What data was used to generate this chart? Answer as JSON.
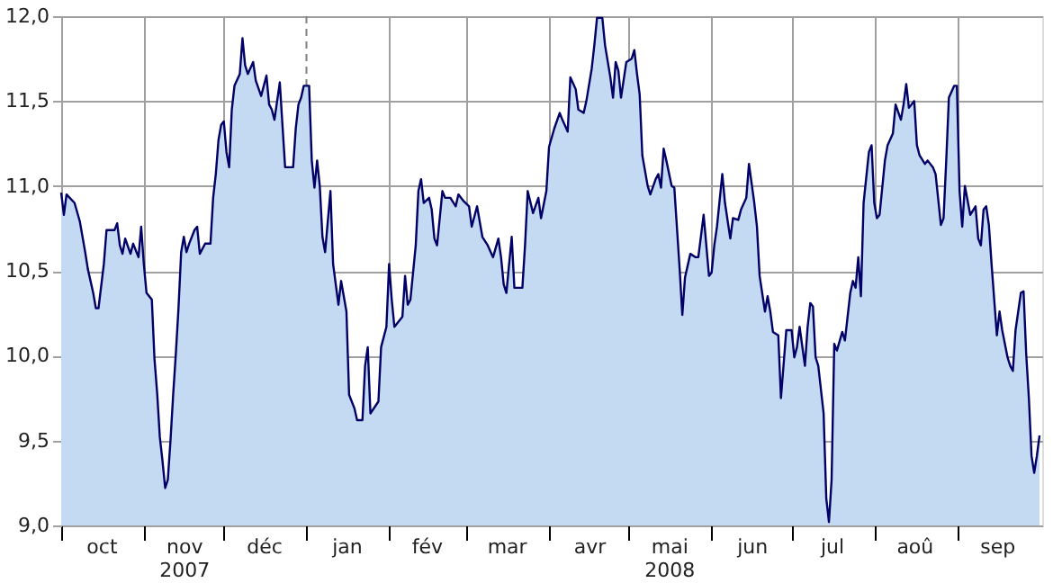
{
  "chart_data": {
    "type": "area",
    "x": [
      "2007-10-01",
      "2007-10-02",
      "2007-10-03",
      "2007-10-06",
      "2007-10-08",
      "2007-10-10",
      "2007-10-11",
      "2007-10-13",
      "2007-10-14",
      "2007-10-15",
      "2007-10-17",
      "2007-10-18",
      "2007-10-21",
      "2007-10-22",
      "2007-10-23",
      "2007-10-24",
      "2007-10-25",
      "2007-10-27",
      "2007-10-28",
      "2007-10-30",
      "2007-10-31",
      "2007-11-01",
      "2007-11-02",
      "2007-11-04",
      "2007-11-05",
      "2007-11-06",
      "2007-11-07",
      "2007-11-08",
      "2007-11-09",
      "2007-11-10",
      "2007-11-11",
      "2007-11-12",
      "2007-11-13",
      "2007-11-14",
      "2007-11-15",
      "2007-11-16",
      "2007-11-17",
      "2007-11-18",
      "2007-11-20",
      "2007-11-21",
      "2007-11-22",
      "2007-11-24",
      "2007-11-26",
      "2007-11-27",
      "2007-11-28",
      "2007-11-29",
      "2007-11-30",
      "2007-12-01",
      "2007-12-02",
      "2007-12-03",
      "2007-12-04",
      "2007-12-05",
      "2007-12-07",
      "2007-12-08",
      "2007-12-09",
      "2007-12-10",
      "2007-12-12",
      "2007-12-13",
      "2007-12-15",
      "2007-12-16",
      "2007-12-17",
      "2007-12-18",
      "2007-12-19",
      "2007-12-20",
      "2007-12-22",
      "2007-12-23",
      "2007-12-24",
      "2007-12-27",
      "2007-12-28",
      "2007-12-29",
      "2007-12-30",
      "2007-12-31",
      "2008-01-02",
      "2008-01-03",
      "2008-01-04",
      "2008-01-05",
      "2008-01-06",
      "2008-01-07",
      "2008-01-08",
      "2008-01-10",
      "2008-01-11",
      "2008-01-13",
      "2008-01-14",
      "2008-01-16",
      "2008-01-17",
      "2008-01-19",
      "2008-01-20",
      "2008-01-22",
      "2008-01-23",
      "2008-01-24",
      "2008-01-25",
      "2008-01-28",
      "2008-01-29",
      "2008-01-31",
      "2008-02-01",
      "2008-02-02",
      "2008-02-03",
      "2008-02-06",
      "2008-02-07",
      "2008-02-08",
      "2008-02-09",
      "2008-02-11",
      "2008-02-12",
      "2008-02-13",
      "2008-02-14",
      "2008-02-16",
      "2008-02-17",
      "2008-02-18",
      "2008-02-19",
      "2008-02-21",
      "2008-02-22",
      "2008-02-24",
      "2008-02-26",
      "2008-02-27",
      "2008-02-29",
      "2008-03-02",
      "2008-03-03",
      "2008-03-05",
      "2008-03-07",
      "2008-03-09",
      "2008-03-11",
      "2008-03-13",
      "2008-03-14",
      "2008-03-15",
      "2008-03-16",
      "2008-03-18",
      "2008-03-19",
      "2008-03-20",
      "2008-03-22",
      "2008-03-23",
      "2008-03-24",
      "2008-03-26",
      "2008-03-28",
      "2008-03-29",
      "2008-03-31",
      "2008-04-01",
      "2008-04-03",
      "2008-04-05",
      "2008-04-06",
      "2008-04-08",
      "2008-04-09",
      "2008-04-11",
      "2008-04-12",
      "2008-04-14",
      "2008-04-15",
      "2008-04-17",
      "2008-04-18",
      "2008-04-19",
      "2008-04-21",
      "2008-04-22",
      "2008-04-24",
      "2008-04-25",
      "2008-04-26",
      "2008-04-27",
      "2008-04-28",
      "2008-04-30",
      "2008-05-02",
      "2008-05-03",
      "2008-05-04",
      "2008-05-05",
      "2008-05-06",
      "2008-05-08",
      "2008-05-09",
      "2008-05-11",
      "2008-05-12",
      "2008-05-13",
      "2008-05-14",
      "2008-05-15",
      "2008-05-17",
      "2008-05-18",
      "2008-05-20",
      "2008-05-21",
      "2008-05-22",
      "2008-05-24",
      "2008-05-26",
      "2008-05-27",
      "2008-05-29",
      "2008-05-31",
      "2008-06-01",
      "2008-06-02",
      "2008-06-03",
      "2008-06-05",
      "2008-06-06",
      "2008-06-08",
      "2008-06-09",
      "2008-06-11",
      "2008-06-12",
      "2008-06-14",
      "2008-06-15",
      "2008-06-17",
      "2008-06-18",
      "2008-06-19",
      "2008-06-21",
      "2008-06-22",
      "2008-06-23",
      "2008-06-24",
      "2008-06-26",
      "2008-06-27",
      "2008-06-29",
      "2008-07-01",
      "2008-07-02",
      "2008-07-03",
      "2008-07-04",
      "2008-07-06",
      "2008-07-07",
      "2008-07-08",
      "2008-07-09",
      "2008-07-10",
      "2008-07-11",
      "2008-07-13",
      "2008-07-14",
      "2008-07-15",
      "2008-07-16",
      "2008-07-17",
      "2008-07-18",
      "2008-07-20",
      "2008-07-21",
      "2008-07-23",
      "2008-07-24",
      "2008-07-25",
      "2008-07-26",
      "2008-07-27",
      "2008-07-28",
      "2008-07-30",
      "2008-07-31",
      "2008-08-01",
      "2008-08-02",
      "2008-08-03",
      "2008-08-05",
      "2008-08-06",
      "2008-08-08",
      "2008-08-09",
      "2008-08-11",
      "2008-08-12",
      "2008-08-13",
      "2008-08-14",
      "2008-08-16",
      "2008-08-17",
      "2008-08-18",
      "2008-08-20",
      "2008-08-21",
      "2008-08-23",
      "2008-08-24",
      "2008-08-26",
      "2008-08-27",
      "2008-08-28",
      "2008-08-29",
      "2008-08-31",
      "2008-09-01",
      "2008-09-02",
      "2008-09-03",
      "2008-09-04",
      "2008-09-06",
      "2008-09-08",
      "2008-09-09",
      "2008-09-10",
      "2008-09-11",
      "2008-09-12",
      "2008-09-13",
      "2008-09-14",
      "2008-09-16",
      "2008-09-17",
      "2008-09-18",
      "2008-09-20",
      "2008-09-21",
      "2008-09-22",
      "2008-09-23",
      "2008-09-25",
      "2008-09-26",
      "2008-09-27",
      "2008-09-28",
      "2008-09-29",
      "2008-09-30",
      "2008-10-01",
      "2008-10-02"
    ],
    "series": [
      {
        "color": "#c4daf2",
        "values": [
          10.96,
          10.83,
          10.95,
          10.9,
          10.79,
          10.61,
          10.51,
          10.37,
          10.28,
          10.28,
          10.54,
          10.74,
          10.74,
          10.78,
          10.65,
          10.6,
          10.69,
          10.6,
          10.66,
          10.58,
          10.76,
          10.54,
          10.37,
          10.33,
          9.98,
          9.78,
          9.52,
          9.38,
          9.22,
          9.27,
          9.5,
          9.77,
          10.01,
          10.28,
          10.61,
          10.7,
          10.61,
          10.66,
          10.74,
          10.76,
          10.6,
          10.66,
          10.66,
          10.93,
          11.07,
          11.27,
          11.36,
          11.38,
          11.2,
          11.11,
          11.45,
          11.59,
          11.66,
          11.87,
          11.71,
          11.66,
          11.73,
          11.62,
          11.53,
          11.59,
          11.65,
          11.48,
          11.45,
          11.39,
          11.61,
          11.36,
          11.11,
          11.11,
          11.34,
          11.48,
          11.52,
          11.59,
          11.59,
          11.15,
          10.99,
          11.15,
          11.0,
          10.7,
          10.61,
          10.97,
          10.54,
          10.3,
          10.44,
          10.26,
          9.77,
          9.69,
          9.62,
          9.62,
          9.94,
          10.05,
          9.66,
          9.73,
          10.05,
          10.17,
          10.54,
          10.33,
          10.17,
          10.23,
          10.47,
          10.3,
          10.33,
          10.65,
          10.97,
          11.04,
          10.9,
          10.93,
          10.86,
          10.69,
          10.65,
          10.97,
          10.93,
          10.93,
          10.88,
          10.95,
          10.91,
          10.88,
          10.76,
          10.88,
          10.7,
          10.65,
          10.58,
          10.69,
          10.58,
          10.42,
          10.37,
          10.7,
          10.4,
          10.4,
          10.4,
          10.65,
          10.97,
          10.84,
          10.93,
          10.81,
          10.97,
          11.23,
          11.34,
          11.43,
          11.39,
          11.32,
          11.64,
          11.57,
          11.45,
          11.43,
          11.5,
          11.69,
          11.83,
          11.99,
          11.99,
          11.83,
          11.64,
          11.52,
          11.73,
          11.68,
          11.52,
          11.73,
          11.75,
          11.8,
          11.66,
          11.54,
          11.18,
          11.0,
          10.95,
          11.04,
          11.07,
          10.99,
          11.22,
          11.15,
          11.0,
          10.99,
          10.51,
          10.24,
          10.46,
          10.6,
          10.58,
          10.58,
          10.83,
          10.47,
          10.49,
          10.65,
          10.76,
          11.07,
          10.9,
          10.69,
          10.81,
          10.8,
          10.86,
          10.93,
          11.13,
          10.9,
          10.76,
          10.47,
          10.26,
          10.35,
          10.26,
          10.14,
          10.12,
          9.75,
          10.15,
          10.15,
          9.99,
          10.05,
          10.17,
          9.94,
          10.17,
          10.31,
          10.29,
          9.99,
          9.94,
          9.66,
          9.16,
          9.02,
          9.27,
          10.07,
          10.03,
          10.14,
          10.09,
          10.37,
          10.44,
          10.4,
          10.58,
          10.35,
          10.9,
          11.2,
          11.24,
          10.9,
          10.81,
          10.83,
          11.15,
          11.24,
          11.31,
          11.48,
          11.39,
          11.48,
          11.6,
          11.46,
          11.5,
          11.24,
          11.18,
          11.13,
          11.15,
          11.11,
          11.07,
          10.77,
          10.81,
          11.15,
          11.52,
          11.59,
          11.59,
          10.97,
          10.76,
          11.0,
          10.83,
          10.88,
          10.69,
          10.65,
          10.86,
          10.88,
          10.77,
          10.54,
          10.12,
          10.26,
          10.15,
          9.99,
          9.94,
          9.91,
          10.15,
          10.37,
          10.38,
          10.01,
          9.75,
          9.41,
          9.31,
          9.41,
          9.53
        ]
      }
    ],
    "xlim": [
      "2007-10-01",
      "2008-10-03"
    ],
    "xticks": [
      {
        "value": "2007-10-01",
        "label": null
      },
      {
        "value": "2007-10-16",
        "label": "oct"
      },
      {
        "value": "2007-11-01",
        "label": null
      },
      {
        "value": "2007-11-16",
        "label": "nov\n2007"
      },
      {
        "value": "2007-12-01",
        "label": null
      },
      {
        "value": "2007-12-16",
        "label": "déc"
      },
      {
        "value": "2008-01-01",
        "label": null
      },
      {
        "value": "2008-01-16",
        "label": "jan"
      },
      {
        "value": "2008-02-01",
        "label": null
      },
      {
        "value": "2008-02-15",
        "label": "fév"
      },
      {
        "value": "2008-03-01",
        "label": null
      },
      {
        "value": "2008-03-16",
        "label": "mar"
      },
      {
        "value": "2008-04-01",
        "label": null
      },
      {
        "value": "2008-04-16",
        "label": "avr"
      },
      {
        "value": "2008-05-01",
        "label": null
      },
      {
        "value": "2008-05-16",
        "label": "mai\n2008"
      },
      {
        "value": "2008-06-01",
        "label": null
      },
      {
        "value": "2008-06-16",
        "label": "jun"
      },
      {
        "value": "2008-07-01",
        "label": null
      },
      {
        "value": "2008-07-16",
        "label": "jul"
      },
      {
        "value": "2008-08-01",
        "label": null
      },
      {
        "value": "2008-08-16",
        "label": "aoû"
      },
      {
        "value": "2008-09-01",
        "label": null
      },
      {
        "value": "2008-09-16",
        "label": "sep"
      }
    ],
    "ylim": [
      9.0,
      12.0
    ],
    "yticks": [
      {
        "value": 9.0,
        "label": "9,0"
      },
      {
        "value": 9.5,
        "label": "9,5"
      },
      {
        "value": 10.0,
        "label": "10,0"
      },
      {
        "value": 10.5,
        "label": "10,5"
      },
      {
        "value": 11.0,
        "label": "11,0"
      },
      {
        "value": 11.5,
        "label": "11,5"
      },
      {
        "value": 12.0,
        "label": "12,0"
      }
    ],
    "grid": true,
    "ref_lines": [
      {
        "axis": "x",
        "value": "2008-01-01",
        "line_style": "dashed",
        "color": "#808080"
      }
    ]
  }
}
